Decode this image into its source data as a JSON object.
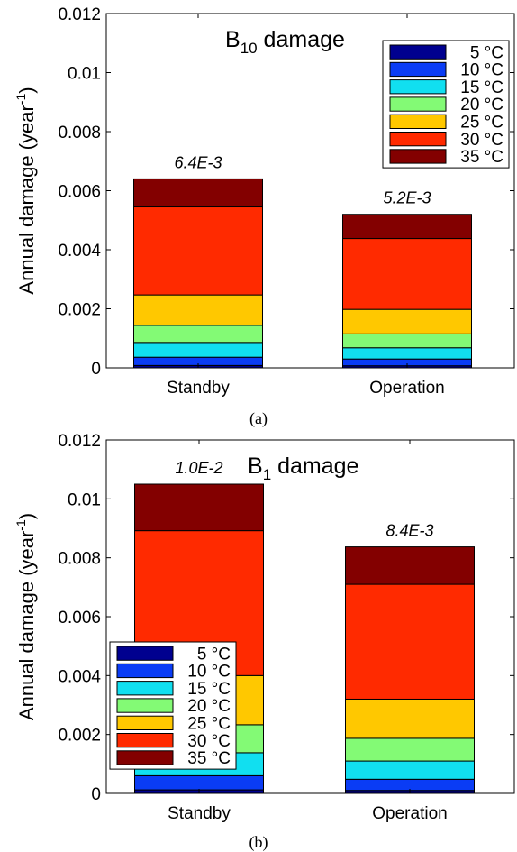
{
  "chart_data": [
    {
      "type": "bar",
      "stacked": true,
      "title": "B",
      "title_subscript": "10",
      "title_suffix": " damage",
      "ylabel": "Annual damage (year",
      "ylabel_sup": "-1",
      "ylabel_close": ")",
      "ylim": [
        0,
        0.012
      ],
      "yticks": [
        "0",
        "0.002",
        "0.004",
        "0.006",
        "0.008",
        "0.01",
        "0.012"
      ],
      "categories": [
        "Standby",
        "Operation"
      ],
      "totals_labels": [
        "6.4E-3",
        "5.2E-3"
      ],
      "legend_position": "top-right",
      "series": [
        {
          "name": "5 °C",
          "color": "#00008f",
          "values": [
            8e-05,
            7e-05
          ]
        },
        {
          "name": "10 °C",
          "color": "#0a3cf5",
          "values": [
            0.00028,
            0.00023
          ]
        },
        {
          "name": "15 °C",
          "color": "#11dff0",
          "values": [
            0.0005,
            0.00038
          ]
        },
        {
          "name": "20 °C",
          "color": "#83fa75",
          "values": [
            0.00058,
            0.00047
          ]
        },
        {
          "name": "25 °C",
          "color": "#ffc800",
          "values": [
            0.00103,
            0.00083
          ]
        },
        {
          "name": "30 °C",
          "color": "#ff2a00",
          "values": [
            0.00298,
            0.0024
          ]
        },
        {
          "name": "35 °C",
          "color": "#830000",
          "values": [
            0.00095,
            0.00082
          ]
        }
      ],
      "caption": "(a)"
    },
    {
      "type": "bar",
      "stacked": true,
      "title": "B",
      "title_subscript": "1",
      "title_suffix": " damage",
      "ylabel": "Annual damage (year",
      "ylabel_sup": "-1",
      "ylabel_close": ")",
      "ylim": [
        0,
        0.012
      ],
      "yticks": [
        "0",
        "0.002",
        "0.004",
        "0.006",
        "0.008",
        "0.01",
        "0.012"
      ],
      "categories": [
        "Standby",
        "Operation"
      ],
      "totals_labels": [
        "1.0E-2",
        "8.4E-3"
      ],
      "legend_position": "bottom-left",
      "series": [
        {
          "name": "5 °C",
          "color": "#00008f",
          "values": [
            0.00012,
            0.0001
          ]
        },
        {
          "name": "10 °C",
          "color": "#0a3cf5",
          "values": [
            0.00048,
            0.00038
          ]
        },
        {
          "name": "15 °C",
          "color": "#11dff0",
          "values": [
            0.00078,
            0.00062
          ]
        },
        {
          "name": "20 °C",
          "color": "#83fa75",
          "values": [
            0.00095,
            0.00077
          ]
        },
        {
          "name": "25 °C",
          "color": "#ffc800",
          "values": [
            0.00167,
            0.00133
          ]
        },
        {
          "name": "30 °C",
          "color": "#ff2a00",
          "values": [
            0.00492,
            0.0039
          ]
        },
        {
          "name": "35 °C",
          "color": "#830000",
          "values": [
            0.00158,
            0.00127
          ]
        }
      ],
      "caption": "(b)"
    }
  ]
}
